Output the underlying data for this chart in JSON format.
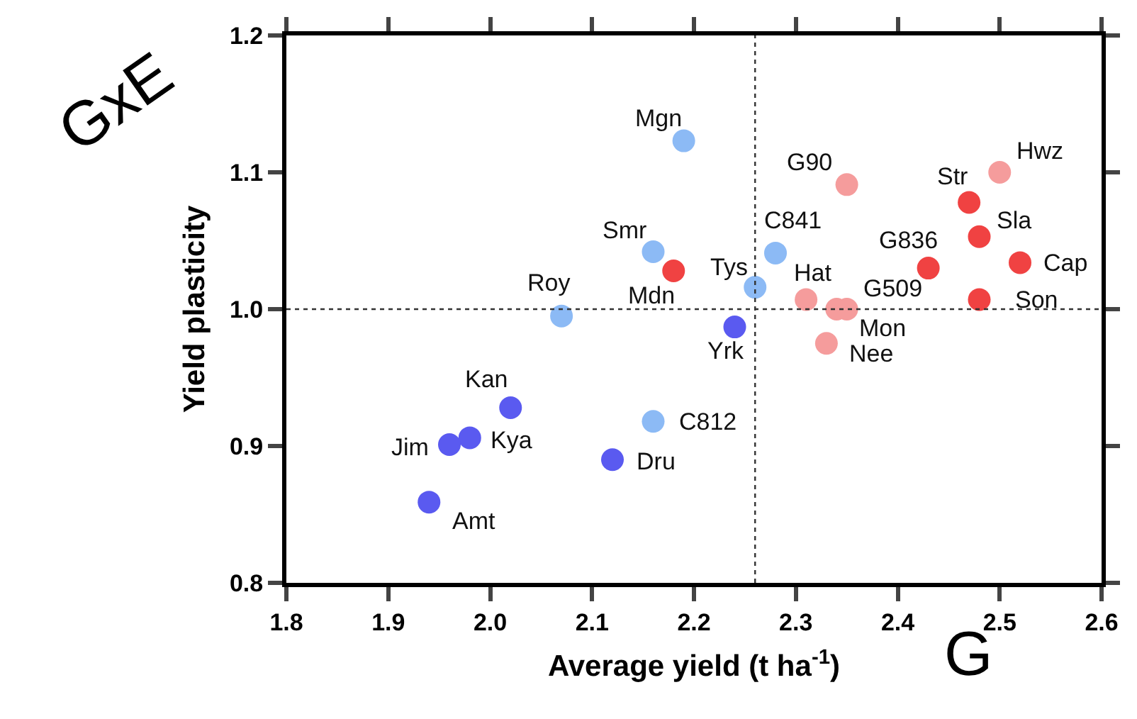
{
  "chart_data": {
    "type": "scatter",
    "xlabel": "Average yield (t ha$^{-1}$)",
    "ylabel": "Yield plasticity",
    "xlim": [
      1.8,
      2.6
    ],
    "xticks": [
      1.8,
      1.9,
      {
        "value": 2,
        "label": "2.0"
      },
      2.1,
      2.2,
      2.3,
      2.4,
      2.5,
      2.6
    ],
    "ylim": [
      0.8,
      1.2
    ],
    "yticks": [
      0.8,
      0.9,
      {
        "value": 1,
        "label": "1.0"
      },
      1.1,
      1.2
    ],
    "marker": "circle",
    "series": [
      {
        "color": "#5a5af0",
        "x": [
          2.02,
          1.98,
          1.96,
          1.94,
          2.12,
          2.24
        ],
        "values": [
          0.928,
          0.906,
          0.901,
          0.859,
          0.89,
          0.987
        ]
      },
      {
        "color": "#8cbaf5",
        "x": [
          2.19,
          2.16,
          2.07,
          2.28,
          2.26,
          2.16
        ],
        "values": [
          1.123,
          1.042,
          0.995,
          1.041,
          1.016,
          0.918
        ]
      },
      {
        "color": "#f04242",
        "x": [
          2.18,
          2.47,
          2.48,
          2.43,
          2.52,
          2.48
        ],
        "values": [
          1.028,
          1.078,
          1.053,
          1.03,
          1.034,
          1.007
        ]
      },
      {
        "color": "#f59c9c",
        "x": [
          2.35,
          2.31,
          2.35,
          2.34,
          2.33,
          2.5
        ],
        "values": [
          1.091,
          1.007,
          1.0,
          1.0,
          0.975,
          1.1
        ]
      }
    ],
    "ref_lines": [
      {
        "axis": "x",
        "value": 2.26,
        "line_style": "dotted",
        "color": "#333333"
      },
      {
        "axis": "y",
        "value": 1.0,
        "line_style": "dotted",
        "color": "#333333"
      }
    ],
    "annotations": [
      {
        "text": "Kan",
        "x": 2.02,
        "y": 0.928
      },
      {
        "text": "Kya",
        "x": 1.98,
        "y": 0.906
      },
      {
        "text": "Jim",
        "x": 1.96,
        "y": 0.901
      },
      {
        "text": "Amt",
        "x": 1.94,
        "y": 0.859
      },
      {
        "text": "Dru",
        "x": 2.12,
        "y": 0.89
      },
      {
        "text": "Yrk",
        "x": 2.24,
        "y": 0.987
      },
      {
        "text": "Mgn",
        "x": 2.19,
        "y": 1.123
      },
      {
        "text": "Smr",
        "x": 2.16,
        "y": 1.042
      },
      {
        "text": "Roy",
        "x": 2.07,
        "y": 0.995
      },
      {
        "text": "C841",
        "x": 2.28,
        "y": 1.041
      },
      {
        "text": "Tys",
        "x": 2.26,
        "y": 1.016
      },
      {
        "text": "C812",
        "x": 2.16,
        "y": 0.918
      },
      {
        "text": "Mdn",
        "x": 2.18,
        "y": 1.028
      },
      {
        "text": "Str",
        "x": 2.47,
        "y": 1.078
      },
      {
        "text": "Sla",
        "x": 2.48,
        "y": 1.053
      },
      {
        "text": "G836",
        "x": 2.43,
        "y": 1.03
      },
      {
        "text": "Cap",
        "x": 2.52,
        "y": 1.034
      },
      {
        "text": "Son",
        "x": 2.48,
        "y": 1.007
      },
      {
        "text": "G90",
        "x": 2.35,
        "y": 1.091
      },
      {
        "text": "Hat",
        "x": 2.31,
        "y": 1.007
      },
      {
        "text": "G509",
        "x": 2.35,
        "y": 1.0
      },
      {
        "text": "Mon",
        "x": 2.34,
        "y": 1.0
      },
      {
        "text": "Nee",
        "x": 2.33,
        "y": 0.975
      },
      {
        "text": "Hwz",
        "x": 2.5,
        "y": 1.1
      },
      "GxE",
      "G"
    ]
  }
}
